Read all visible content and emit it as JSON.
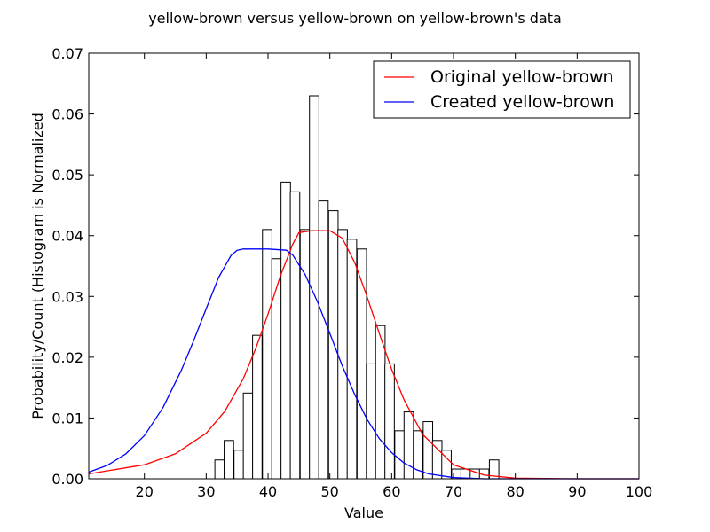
{
  "chart_data": {
    "type": "bar",
    "title": "yellow-brown versus yellow-brown on yellow-brown's data",
    "xlabel": "Value",
    "ylabel": "Probability/Count (Histogram is Normalized",
    "xlim": [
      11,
      100
    ],
    "ylim": [
      0,
      0.07
    ],
    "x_ticks": [
      20,
      30,
      40,
      50,
      60,
      70,
      80,
      90,
      100
    ],
    "y_ticks": [
      0.0,
      0.01,
      0.02,
      0.03,
      0.04,
      0.05,
      0.06,
      0.07
    ],
    "y_tick_labels": [
      "0.00",
      "0.01",
      "0.02",
      "0.03",
      "0.04",
      "0.05",
      "0.06",
      "0.07"
    ],
    "grid": false,
    "legend_placement": "top-right",
    "histogram": {
      "bin_width": 1.53,
      "bin_starts": [
        31.4,
        32.9,
        34.5,
        36.0,
        37.5,
        39.1,
        40.6,
        42.1,
        43.6,
        45.2,
        46.7,
        48.2,
        49.8,
        51.3,
        52.8,
        54.4,
        55.9,
        57.4,
        58.9,
        60.5,
        62.0,
        63.5,
        65.1,
        66.6,
        68.1,
        69.7,
        71.2,
        72.7,
        74.2,
        75.8
      ],
      "values": [
        0.0031,
        0.0063,
        0.0047,
        0.0141,
        0.0236,
        0.041,
        0.0362,
        0.0488,
        0.0472,
        0.041,
        0.063,
        0.0457,
        0.0441,
        0.041,
        0.0394,
        0.0378,
        0.0189,
        0.0252,
        0.0189,
        0.0079,
        0.011,
        0.0079,
        0.0094,
        0.0063,
        0.0047,
        0.0016,
        0.0016,
        0.0016,
        0.0016,
        0.0031
      ],
      "edge_color": "#000000",
      "fill_color": "#ffffff"
    },
    "series": [
      {
        "name": "Original yellow-brown",
        "color": "#ff0000",
        "type": "line",
        "x": [
          11,
          20,
          25,
          30,
          33,
          36,
          38,
          40,
          42,
          44,
          45,
          47,
          50,
          52,
          54,
          56,
          58,
          60,
          62,
          65,
          70,
          75,
          80,
          90,
          100
        ],
        "values": [
          0.0008,
          0.0023,
          0.0041,
          0.0075,
          0.0111,
          0.0165,
          0.0214,
          0.0271,
          0.0334,
          0.0386,
          0.0405,
          0.0408,
          0.0408,
          0.0396,
          0.0356,
          0.03,
          0.0239,
          0.018,
          0.013,
          0.0073,
          0.0023,
          0.0006,
          0.0001,
          0.0,
          0.0
        ]
      },
      {
        "name": "Created yellow-brown",
        "color": "#0000ff",
        "type": "line",
        "x": [
          11,
          14,
          17,
          20,
          23,
          26,
          28,
          30,
          32,
          34,
          35,
          36,
          40,
          43,
          44,
          46,
          48,
          50,
          52,
          54,
          56,
          58,
          60,
          62,
          64,
          66,
          70,
          75,
          80,
          90,
          100
        ],
        "values": [
          0.0011,
          0.0022,
          0.0041,
          0.0071,
          0.0117,
          0.0179,
          0.0228,
          0.028,
          0.0331,
          0.0367,
          0.0376,
          0.0378,
          0.0378,
          0.0376,
          0.0368,
          0.0336,
          0.0291,
          0.0239,
          0.0186,
          0.0139,
          0.0098,
          0.0066,
          0.0043,
          0.0026,
          0.0015,
          0.0008,
          0.0002,
          0.0,
          0.0,
          0.0,
          0.0
        ]
      }
    ]
  }
}
